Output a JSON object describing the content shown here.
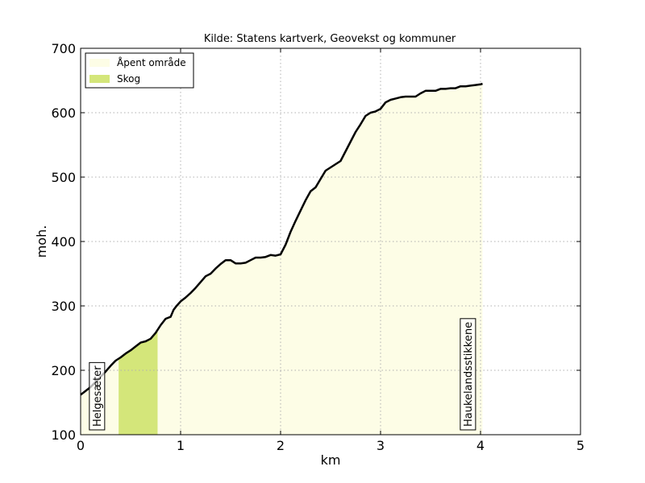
{
  "chart_data": {
    "type": "area",
    "title": "Kilde: Statens kartverk, Geovekst og kommuner",
    "xlabel": "km",
    "ylabel": "moh.",
    "xlim": [
      0,
      5
    ],
    "ylim": [
      100,
      700
    ],
    "xticks": [
      "0",
      "1",
      "2",
      "3",
      "4",
      "5"
    ],
    "yticks": [
      "100",
      "200",
      "300",
      "400",
      "500",
      "600",
      "700"
    ],
    "grid": true,
    "legend_position": "top-left",
    "legend": [
      {
        "label": "Åpent område",
        "color": "#fdfde6"
      },
      {
        "label": "Skog",
        "color": "#d4e67a"
      }
    ],
    "regions": [
      {
        "label": "Åpent område",
        "x_start": 0.0,
        "x_end": 0.38,
        "color": "#fdfde6"
      },
      {
        "label": "Skog",
        "x_start": 0.38,
        "x_end": 0.77,
        "color": "#d4e67a"
      },
      {
        "label": "Åpent område",
        "x_start": 0.77,
        "x_end": 4.02,
        "color": "#fdfde6"
      }
    ],
    "profile": {
      "x": [
        0,
        0.05,
        0.1,
        0.15,
        0.2,
        0.25,
        0.3,
        0.35,
        0.4,
        0.45,
        0.5,
        0.55,
        0.6,
        0.65,
        0.7,
        0.75,
        0.8,
        0.85,
        0.9,
        0.93,
        0.96,
        1.0,
        1.05,
        1.1,
        1.15,
        1.2,
        1.25,
        1.3,
        1.35,
        1.4,
        1.45,
        1.5,
        1.55,
        1.6,
        1.65,
        1.7,
        1.75,
        1.8,
        1.85,
        1.9,
        1.95,
        2.0,
        2.05,
        2.1,
        2.15,
        2.2,
        2.25,
        2.3,
        2.35,
        2.4,
        2.45,
        2.5,
        2.55,
        2.6,
        2.65,
        2.7,
        2.75,
        2.8,
        2.85,
        2.9,
        2.95,
        3.0,
        3.05,
        3.1,
        3.15,
        3.2,
        3.25,
        3.3,
        3.35,
        3.4,
        3.45,
        3.5,
        3.55,
        3.6,
        3.65,
        3.7,
        3.75,
        3.8,
        3.85,
        3.9,
        3.95,
        4.0,
        4.02
      ],
      "y": [
        162,
        168,
        174,
        182,
        190,
        198,
        207,
        215,
        220,
        226,
        231,
        237,
        243,
        245,
        249,
        258,
        270,
        280,
        283,
        294,
        300,
        307,
        313,
        320,
        328,
        337,
        346,
        350,
        358,
        365,
        371,
        371,
        366,
        366,
        367,
        371,
        375,
        375,
        376,
        379,
        378,
        380,
        395,
        415,
        432,
        448,
        464,
        478,
        484,
        497,
        510,
        515,
        520,
        525,
        540,
        555,
        570,
        582,
        595,
        600,
        602,
        606,
        616,
        620,
        622,
        624,
        625,
        625,
        625,
        630,
        634,
        634,
        634,
        637,
        637,
        638,
        638,
        641,
        641,
        642,
        643,
        644,
        645
      ]
    },
    "annotations": [
      {
        "text": "Helgesæter",
        "x": 0.16
      },
      {
        "text": "Haukelandsstikkene",
        "x": 3.87
      }
    ]
  }
}
